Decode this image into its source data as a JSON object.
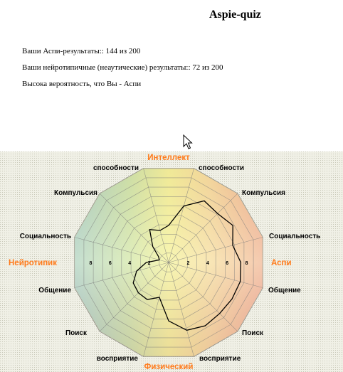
{
  "page": {
    "title": "Aspie-quiz",
    "aspie_score_line": "Ваши Аспи-результаты:: 144 из 200",
    "nt_score_line": "Ваши нейротипичные (неаутические) результаты:: 72 из 200",
    "verdict_line": "Высока вероятность, что Вы - Аспи"
  },
  "chart_data": {
    "type": "radar",
    "poles": {
      "top": "Интеллект",
      "bottom": "Физический",
      "left": "Нейротипик",
      "right": "Аспи"
    },
    "axis_labels": [
      "способности",
      "способности",
      "Компульсия",
      "Компульсия",
      "Социальность",
      "Социальность",
      "Общение",
      "Общение",
      "Поиск",
      "Поиск",
      "восприятие",
      "восприятие"
    ],
    "scale_ticks": [
      "2",
      "4",
      "6",
      "8"
    ],
    "scale_ticks_left": [
      "8",
      "6",
      "4",
      "2"
    ],
    "range": [
      0,
      10
    ],
    "axis_count": 24,
    "profile": [
      3.8,
      6.0,
      7.3,
      7.1,
      7.6,
      6.8,
      7.4,
      7.6,
      7.5,
      7.4,
      7.5,
      7.2,
      6.0,
      3.7,
      4.4,
      4.4,
      4.2,
      3.4,
      2.3,
      1.0,
      1.2,
      2.3,
      3.9,
      3.4
    ],
    "colors": {
      "aspie": "#e8808a",
      "neurotypical": "#88bce0",
      "intellect": "#e8d880",
      "physical": "#e0c890",
      "label_accent": "#ff7a1a",
      "profile_line": "#000000"
    }
  }
}
